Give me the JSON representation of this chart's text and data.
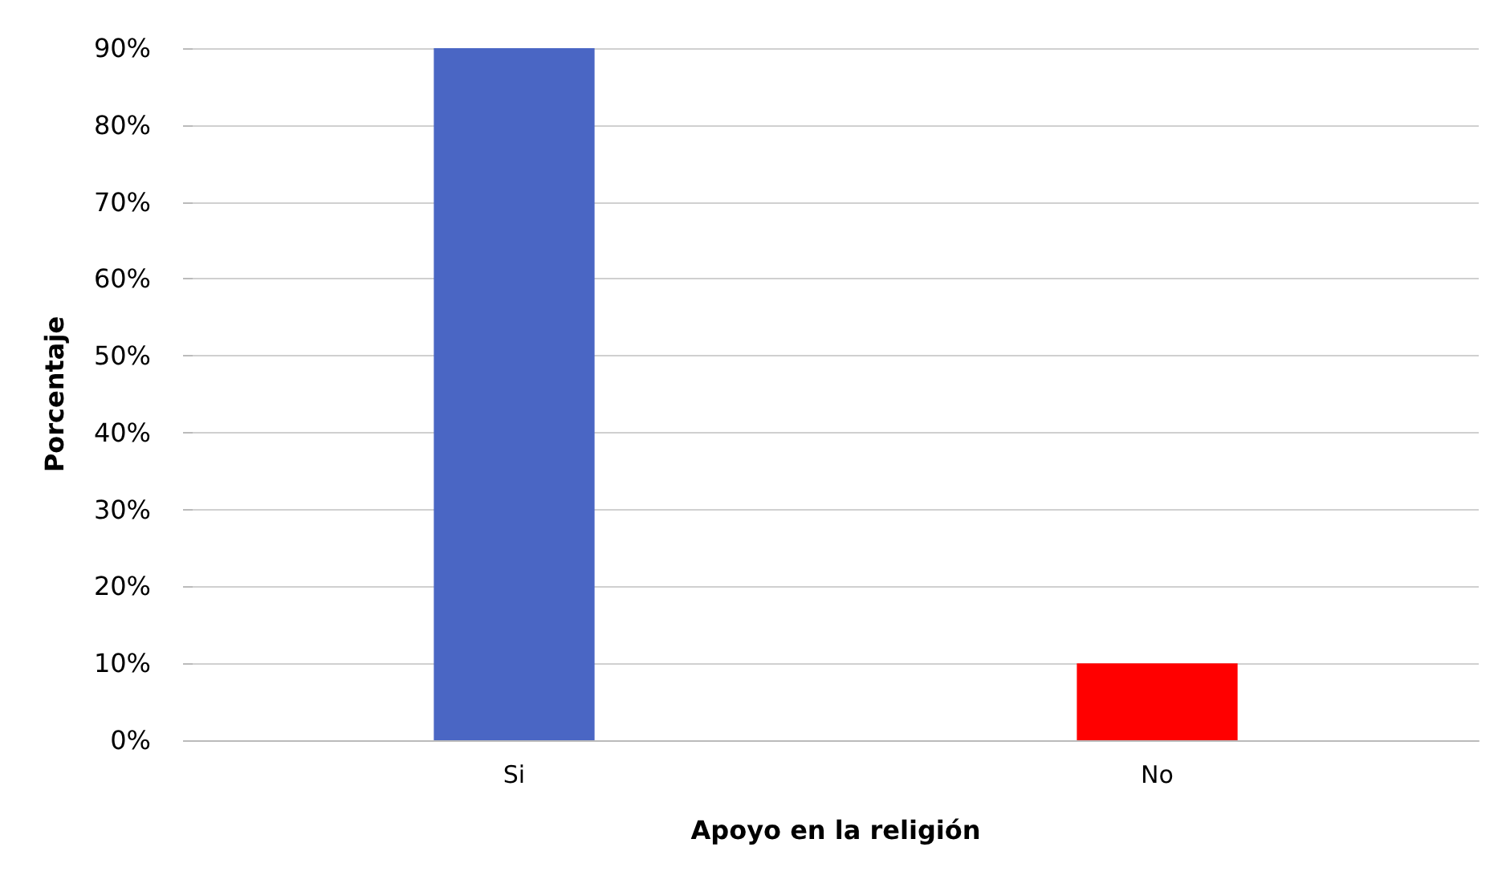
{
  "chart_data": {
    "type": "bar",
    "xlabel": "Apoyo en la religión",
    "ylabel": "Porcentaje",
    "categories": [
      "Si",
      "No"
    ],
    "values": [
      90,
      10
    ],
    "colors": [
      "#4a66c4",
      "#ff0000"
    ],
    "ylim": [
      0,
      90
    ],
    "yticks": [
      {
        "value": 0,
        "label": "0%"
      },
      {
        "value": 10,
        "label": "10%"
      },
      {
        "value": 20,
        "label": "20%"
      },
      {
        "value": 30,
        "label": "30%"
      },
      {
        "value": 40,
        "label": "40%"
      },
      {
        "value": 50,
        "label": "50%"
      },
      {
        "value": 60,
        "label": "60%"
      },
      {
        "value": 70,
        "label": "70%"
      },
      {
        "value": 80,
        "label": "80%"
      },
      {
        "value": 90,
        "label": "90%"
      }
    ],
    "grid": "y"
  }
}
